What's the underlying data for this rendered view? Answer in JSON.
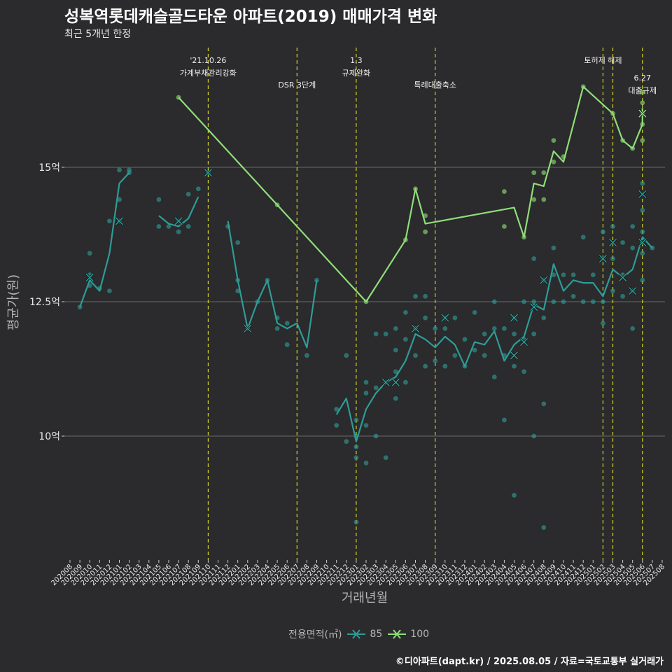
{
  "page": {
    "title": "성복역롯데캐슬골드타운 아파트(2019) 매매가격 변화",
    "subtitle": "최근 5개년 한정",
    "caption": "©디아파트(dapt.kr) / 2025.08.05 / 자료=국토교통부 실거래가"
  },
  "colors": {
    "background": "#2b2a2c",
    "grid": "#6a6a6a",
    "series85": "#2e9c97",
    "series100": "#8fde78",
    "event": "#d4d42a"
  },
  "chart_data": {
    "type": "line",
    "title": "성복역롯데캐슬골드타운 아파트(2019) 매매가격 변화",
    "subtitle": "최근 5개년 한정",
    "xlabel": "거래년월",
    "ylabel": "평균가(원)",
    "y_unit": "억",
    "yticks": [
      {
        "value": 10,
        "label": "10억"
      },
      {
        "value": 12.5,
        "label": "12.5억"
      },
      {
        "value": 15,
        "label": "15억"
      }
    ],
    "ylim": [
      7.75,
      18.0
    ],
    "grid": true,
    "legend": {
      "title": "전용면적(㎡)",
      "position": "bottom",
      "entries": [
        "85",
        "100"
      ]
    },
    "x_categories": [
      "202008",
      "202009",
      "202010",
      "202011",
      "202012",
      "202101",
      "202102",
      "202103",
      "202104",
      "202105",
      "202106",
      "202107",
      "202108",
      "202109",
      "202110",
      "202111",
      "202112",
      "202201",
      "202202",
      "202203",
      "202204",
      "202205",
      "202206",
      "202207",
      "202208",
      "202209",
      "202210",
      "202211",
      "202212",
      "202301",
      "202302",
      "202303",
      "202304",
      "202305",
      "202306",
      "202307",
      "202308",
      "202309",
      "202310",
      "202311",
      "202312",
      "202401",
      "202402",
      "202403",
      "202404",
      "202405",
      "202406",
      "202407",
      "202408",
      "202409",
      "202410",
      "202411",
      "202412",
      "202501",
      "202502",
      "202503",
      "202504",
      "202505",
      "202506",
      "202507",
      "202508"
    ],
    "events": [
      {
        "date": "202110",
        "lines": [
          "'21.10.26",
          "가계부채관리강화"
        ],
        "row": 0
      },
      {
        "date": "202207",
        "lines": [
          "DSR 3단계"
        ],
        "row": 1
      },
      {
        "date": "202301",
        "lines": [
          "1.3",
          "규제완화"
        ],
        "row": 0
      },
      {
        "date": "202309",
        "lines": [
          "특례대출축소"
        ],
        "row": 1
      },
      {
        "date": "202502",
        "lines": [
          "토허제 해제"
        ],
        "row": 0
      },
      {
        "date": "202503",
        "lines": [],
        "row": 0
      },
      {
        "date": "202506",
        "lines": [
          "6.27",
          "대출규제"
        ],
        "row": 2
      }
    ],
    "series": [
      {
        "name": "85",
        "segments": [
          [
            [
              "202009",
              12.4
            ],
            [
              "202010",
              12.9
            ],
            [
              "202011",
              12.7
            ],
            [
              "202012",
              13.4
            ],
            [
              "202101",
              14.7
            ],
            [
              "202102",
              14.9
            ]
          ],
          [
            [
              "202105",
              14.1
            ],
            [
              "202106",
              13.95
            ],
            [
              "202107",
              13.9
            ],
            [
              "202108",
              14.05
            ],
            [
              "202109",
              14.45
            ]
          ],
          [
            [
              "202112",
              14.0
            ],
            [
              "202201",
              12.9
            ],
            [
              "202202",
              12.0
            ],
            [
              "202203",
              12.5
            ],
            [
              "202204",
              12.9
            ],
            [
              "202205",
              12.1
            ],
            [
              "202206",
              12.0
            ],
            [
              "202207",
              12.1
            ],
            [
              "202208",
              11.65
            ],
            [
              "202209",
              12.9
            ]
          ],
          [
            [
              "202211",
              10.4
            ],
            [
              "202212",
              10.7
            ],
            [
              "202301",
              9.9
            ],
            [
              "202302",
              10.5
            ],
            [
              "202303",
              10.8
            ],
            [
              "202304",
              11.0
            ],
            [
              "202305",
              11.1
            ],
            [
              "202306",
              11.4
            ],
            [
              "202307",
              11.9
            ],
            [
              "202308",
              11.8
            ],
            [
              "202309",
              11.65
            ],
            [
              "202310",
              11.85
            ],
            [
              "202311",
              11.7
            ],
            [
              "202312",
              11.3
            ],
            [
              "202401",
              11.75
            ],
            [
              "202402",
              11.7
            ],
            [
              "202403",
              11.95
            ],
            [
              "202404",
              11.4
            ],
            [
              "202405",
              11.7
            ],
            [
              "202406",
              11.85
            ],
            [
              "202407",
              12.45
            ],
            [
              "202408",
              12.35
            ],
            [
              "202409",
              13.2
            ],
            [
              "202410",
              12.7
            ],
            [
              "202411",
              12.9
            ],
            [
              "202412",
              12.85
            ],
            [
              "202501",
              12.85
            ],
            [
              "202502",
              12.6
            ],
            [
              "202503",
              13.1
            ],
            [
              "202504",
              12.95
            ],
            [
              "202505",
              13.1
            ],
            [
              "202506",
              13.7
            ],
            [
              "202507",
              13.5
            ]
          ]
        ],
        "points": [
          [
            "202009",
            12.4
          ],
          [
            "202010",
            12.8
          ],
          [
            "202010",
            13.0
          ],
          [
            "202010",
            13.4
          ],
          [
            "202011",
            12.75
          ],
          [
            "202012",
            12.7
          ],
          [
            "202012",
            14.0
          ],
          [
            "202101",
            14.4
          ],
          [
            "202101",
            14.0
          ],
          [
            "202101",
            14.95
          ],
          [
            "202102",
            14.9
          ],
          [
            "202102",
            14.95
          ],
          [
            "202105",
            13.9
          ],
          [
            "202105",
            14.4
          ],
          [
            "202106",
            13.9
          ],
          [
            "202107",
            13.8
          ],
          [
            "202107",
            14.0
          ],
          [
            "202108",
            13.9
          ],
          [
            "202108",
            14.5
          ],
          [
            "202109",
            14.6
          ],
          [
            "202110",
            14.9
          ],
          [
            "202112",
            13.9
          ],
          [
            "202201",
            12.7
          ],
          [
            "202201",
            12.9
          ],
          [
            "202201",
            13.6
          ],
          [
            "202202",
            12.0
          ],
          [
            "202203",
            12.5
          ],
          [
            "202204",
            12.9
          ],
          [
            "202205",
            12.0
          ],
          [
            "202205",
            12.2
          ],
          [
            "202206",
            11.7
          ],
          [
            "202206",
            12.1
          ],
          [
            "202208",
            11.5
          ],
          [
            "202209",
            12.9
          ],
          [
            "202211",
            10.2
          ],
          [
            "202211",
            10.5
          ],
          [
            "202212",
            9.9
          ],
          [
            "202212",
            11.5
          ],
          [
            "202301",
            8.4
          ],
          [
            "202301",
            9.6
          ],
          [
            "202301",
            9.8
          ],
          [
            "202301",
            10.0
          ],
          [
            "202301",
            10.3
          ],
          [
            "202302",
            9.5
          ],
          [
            "202302",
            10.2
          ],
          [
            "202302",
            10.8
          ],
          [
            "202302",
            11.0
          ],
          [
            "202303",
            10.0
          ],
          [
            "202303",
            10.9
          ],
          [
            "202303",
            11.9
          ],
          [
            "202304",
            9.6
          ],
          [
            "202304",
            11.0
          ],
          [
            "202304",
            11.9
          ],
          [
            "202305",
            10.7
          ],
          [
            "202305",
            11.2
          ],
          [
            "202305",
            11.6
          ],
          [
            "202305",
            12.0
          ],
          [
            "202306",
            11.0
          ],
          [
            "202306",
            11.8
          ],
          [
            "202306",
            12.3
          ],
          [
            "202307",
            11.5
          ],
          [
            "202307",
            12.0
          ],
          [
            "202307",
            12.6
          ],
          [
            "202308",
            11.3
          ],
          [
            "202308",
            12.2
          ],
          [
            "202308",
            12.6
          ],
          [
            "202309",
            11.4
          ],
          [
            "202309",
            12.0
          ],
          [
            "202310",
            11.3
          ],
          [
            "202310",
            12.0
          ],
          [
            "202310",
            12.2
          ],
          [
            "202311",
            11.5
          ],
          [
            "202311",
            12.2
          ],
          [
            "202312",
            11.3
          ],
          [
            "202312",
            11.8
          ],
          [
            "202401",
            11.6
          ],
          [
            "202401",
            12.3
          ],
          [
            "202402",
            11.5
          ],
          [
            "202402",
            11.9
          ],
          [
            "202403",
            11.1
          ],
          [
            "202403",
            12.0
          ],
          [
            "202403",
            12.5
          ],
          [
            "202404",
            10.3
          ],
          [
            "202404",
            11.5
          ],
          [
            "202404",
            12.0
          ],
          [
            "202405",
            8.9
          ],
          [
            "202405",
            11.3
          ],
          [
            "202405",
            11.9
          ],
          [
            "202405",
            12.2
          ],
          [
            "202406",
            11.2
          ],
          [
            "202406",
            11.8
          ],
          [
            "202406",
            12.5
          ],
          [
            "202407",
            10.0
          ],
          [
            "202407",
            11.9
          ],
          [
            "202407",
            12.5
          ],
          [
            "202407",
            13.3
          ],
          [
            "202408",
            8.3
          ],
          [
            "202408",
            10.6
          ],
          [
            "202408",
            12.2
          ],
          [
            "202408",
            12.9
          ],
          [
            "202409",
            12.5
          ],
          [
            "202409",
            13.0
          ],
          [
            "202409",
            13.5
          ],
          [
            "202410",
            12.5
          ],
          [
            "202410",
            13.0
          ],
          [
            "202411",
            12.6
          ],
          [
            "202411",
            13.0
          ],
          [
            "202412",
            12.5
          ],
          [
            "202412",
            13.7
          ],
          [
            "202501",
            12.5
          ],
          [
            "202501",
            13.0
          ],
          [
            "202502",
            12.1
          ],
          [
            "202502",
            12.5
          ],
          [
            "202502",
            13.3
          ],
          [
            "202502",
            13.8
          ],
          [
            "202503",
            12.7
          ],
          [
            "202503",
            13.3
          ],
          [
            "202503",
            13.9
          ],
          [
            "202504",
            12.6
          ],
          [
            "202504",
            13.0
          ],
          [
            "202504",
            13.6
          ],
          [
            "202505",
            12.0
          ],
          [
            "202505",
            12.7
          ],
          [
            "202505",
            13.5
          ],
          [
            "202505",
            13.9
          ],
          [
            "202506",
            12.9
          ],
          [
            "202506",
            13.4
          ],
          [
            "202506",
            13.8
          ],
          [
            "202506",
            14.2
          ],
          [
            "202506",
            14.7
          ],
          [
            "202507",
            13.5
          ]
        ],
        "crosses": [
          [
            "202010",
            12.95
          ],
          [
            "202101",
            14.0
          ],
          [
            "202107",
            14.0
          ],
          [
            "202110",
            14.9
          ],
          [
            "202202",
            12.0
          ],
          [
            "202304",
            11.0
          ],
          [
            "202305",
            11.0
          ],
          [
            "202307",
            12.0
          ],
          [
            "202310",
            12.2
          ],
          [
            "202405",
            11.5
          ],
          [
            "202405",
            12.2
          ],
          [
            "202406",
            11.75
          ],
          [
            "202407",
            12.4
          ],
          [
            "202408",
            12.9
          ],
          [
            "202502",
            13.3
          ],
          [
            "202503",
            13.6
          ],
          [
            "202504",
            12.95
          ],
          [
            "202505",
            12.7
          ],
          [
            "202506",
            14.5
          ],
          [
            "202506",
            13.6
          ]
        ]
      },
      {
        "name": "100",
        "segments": [
          [
            [
              "202107",
              16.3
            ],
            [
              "202205",
              14.3
            ],
            [
              "202302",
              12.5
            ],
            [
              "202306",
              13.65
            ],
            [
              "202307",
              14.6
            ],
            [
              "202308",
              13.95
            ],
            [
              "202405",
              14.25
            ],
            [
              "202406",
              13.7
            ],
            [
              "202407",
              14.7
            ],
            [
              "202408",
              14.65
            ],
            [
              "202409",
              15.3
            ],
            [
              "202410",
              15.1
            ],
            [
              "202412",
              16.5
            ],
            [
              "202503",
              16.0
            ],
            [
              "202504",
              15.5
            ],
            [
              "202505",
              15.35
            ],
            [
              "202506",
              15.8
            ],
            [
              "202506",
              16.1
            ]
          ]
        ],
        "points": [
          [
            "202107",
            16.3
          ],
          [
            "202205",
            14.3
          ],
          [
            "202302",
            12.5
          ],
          [
            "202306",
            13.65
          ],
          [
            "202307",
            14.6
          ],
          [
            "202308",
            14.1
          ],
          [
            "202308",
            13.8
          ],
          [
            "202404",
            14.55
          ],
          [
            "202404",
            13.9
          ],
          [
            "202406",
            13.7
          ],
          [
            "202407",
            14.9
          ],
          [
            "202407",
            14.4
          ],
          [
            "202408",
            14.9
          ],
          [
            "202408",
            14.4
          ],
          [
            "202409",
            15.5
          ],
          [
            "202409",
            15.1
          ],
          [
            "202410",
            15.2
          ],
          [
            "202412",
            16.5
          ],
          [
            "202503",
            16.0
          ],
          [
            "202504",
            15.5
          ],
          [
            "202505",
            15.35
          ],
          [
            "202506",
            15.5
          ],
          [
            "202506",
            15.8
          ],
          [
            "202506",
            16.2
          ],
          [
            "202506",
            16.4
          ],
          [
            "202506",
            16.0
          ]
        ],
        "crosses": [
          [
            "202506",
            16.0
          ]
        ]
      }
    ]
  }
}
